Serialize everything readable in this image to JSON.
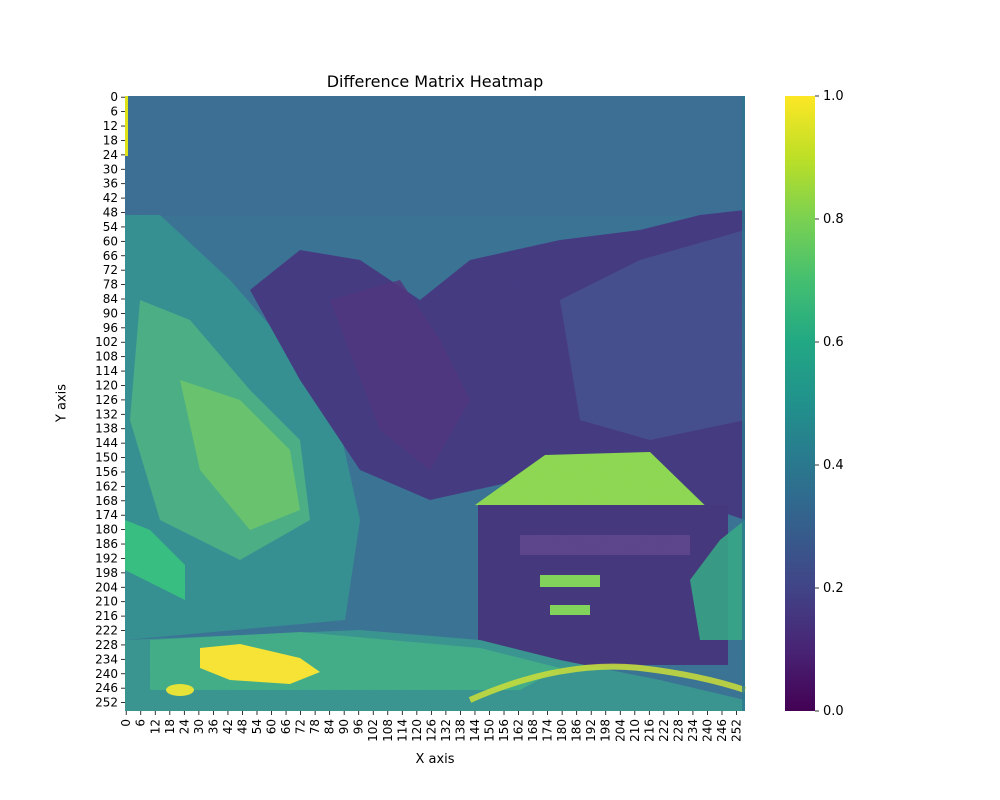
{
  "chart_data": {
    "type": "heatmap",
    "title": "Difference Matrix Heatmap",
    "xlabel": "X axis",
    "ylabel": "Y axis",
    "rows": 256,
    "cols": 256,
    "x_ticks": [
      0,
      6,
      12,
      18,
      24,
      30,
      36,
      42,
      48,
      54,
      60,
      66,
      72,
      78,
      84,
      90,
      96,
      102,
      108,
      114,
      120,
      126,
      132,
      138,
      144,
      150,
      156,
      162,
      168,
      174,
      180,
      186,
      192,
      198,
      204,
      210,
      216,
      222,
      228,
      234,
      240,
      246,
      252
    ],
    "y_ticks": [
      0,
      6,
      12,
      18,
      24,
      30,
      36,
      42,
      48,
      54,
      60,
      66,
      72,
      78,
      84,
      90,
      96,
      102,
      108,
      114,
      120,
      126,
      132,
      138,
      144,
      150,
      156,
      162,
      168,
      174,
      180,
      186,
      192,
      198,
      204,
      210,
      216,
      222,
      228,
      234,
      240,
      246,
      252
    ],
    "colorbar": {
      "range": [
        0.0,
        1.0
      ],
      "ticks": [
        "0.0",
        "0.2",
        "0.4",
        "0.6",
        "0.8",
        "1.0"
      ],
      "colormap": "viridis"
    },
    "description_regions": [
      {
        "name": "sky",
        "rows": [
          0,
          50
        ],
        "value": 0.25
      },
      {
        "name": "mountains-left",
        "rows": [
          50,
          180
        ],
        "cols": [
          0,
          70
        ],
        "value": 0.55
      },
      {
        "name": "mountains-center",
        "rows": [
          60,
          160
        ],
        "cols": [
          60,
          180
        ],
        "value": 0.12
      },
      {
        "name": "roof",
        "rows": [
          148,
          170
        ],
        "cols": [
          145,
          220
        ],
        "value": 0.82
      },
      {
        "name": "house",
        "rows": [
          165,
          230
        ],
        "cols": [
          145,
          245
        ],
        "value": 0.15
      },
      {
        "name": "bright-patch",
        "rows": [
          230,
          246
        ],
        "cols": [
          30,
          75
        ],
        "value": 1.0
      },
      {
        "name": "ground",
        "rows": [
          225,
          256
        ],
        "cols": [
          10,
          240
        ],
        "value": 0.6
      }
    ]
  }
}
